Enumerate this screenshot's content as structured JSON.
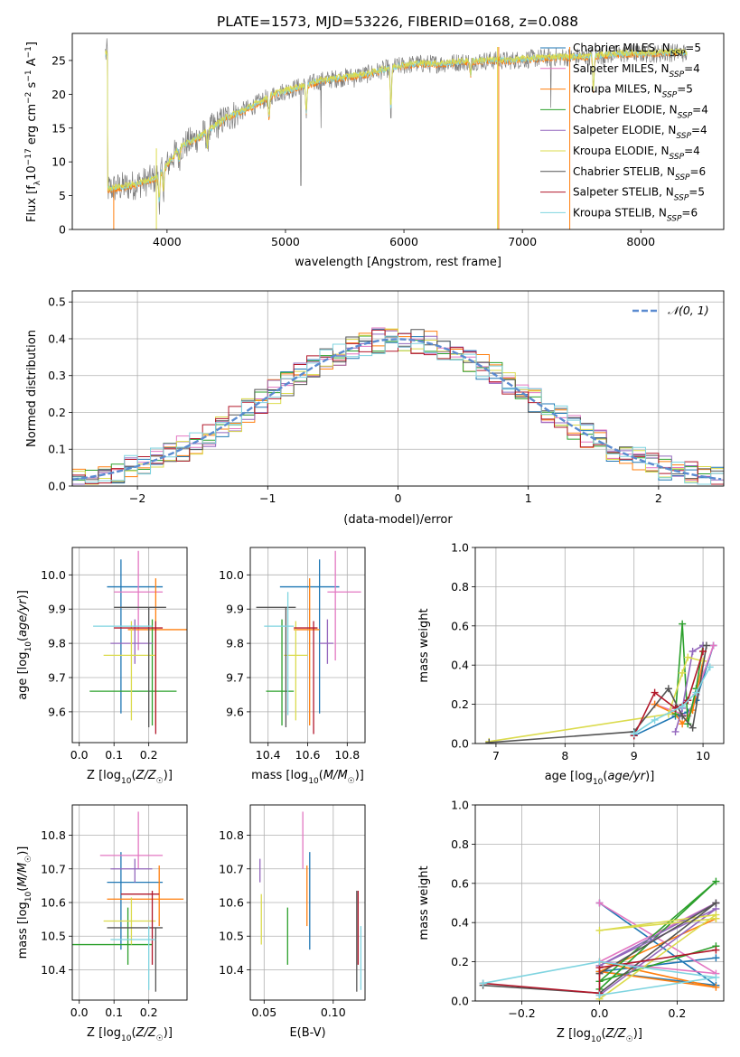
{
  "figure_title": "PLATE=1573, MJD=53226, FIBERID=0168, z=0.088",
  "legend_colors": {
    "Chabrier MILES": "#1f77b4",
    "Salpeter MILES": "#e377c2",
    "Kroupa MILES": "#ff7f0e",
    "Chabrier ELODIE": "#2ca02c",
    "Salpeter ELODIE": "#9467bd",
    "Kroupa ELODIE": "#dbdb4d",
    "Chabrier STELIB": "#555555",
    "Salpeter STELIB": "#b2182b",
    "Kroupa STELIB": "#7fd4e0"
  },
  "chart_data": [
    {
      "type": "line",
      "xlabel": "wavelength [Angstrom, rest frame]",
      "ylabel": "Flux [f_λ10^-17 erg cm^-2 s^-1 A^-1]",
      "xlim": [
        3200,
        8700
      ],
      "ylim": [
        0,
        29
      ],
      "xticks": [
        4000,
        5000,
        6000,
        7000,
        8000
      ],
      "yticks": [
        0,
        5,
        10,
        15,
        20,
        25
      ],
      "legend_position": "top-right",
      "legend_entries": [
        {
          "label": "Chabrier MILES, N",
          "sub": "SSP",
          "tail": "=5"
        },
        {
          "label": "Salpeter MILES, N",
          "sub": "SSP",
          "tail": "=4"
        },
        {
          "label": "Kroupa MILES, N",
          "sub": "SSP",
          "tail": "=5"
        },
        {
          "label": "Chabrier ELODIE, N",
          "sub": "SSP",
          "tail": "=4"
        },
        {
          "label": "Salpeter ELODIE, N",
          "sub": "SSP",
          "tail": "=4"
        },
        {
          "label": "Kroupa ELODIE, N",
          "sub": "SSP",
          "tail": "=4"
        },
        {
          "label": "Chabrier STELIB, N",
          "sub": "SSP",
          "tail": "=6"
        },
        {
          "label": "Salpeter STELIB, N",
          "sub": "SSP",
          "tail": "=5"
        },
        {
          "label": "Kroupa STELIB, N",
          "sub": "SSP",
          "tail": "=6"
        }
      ],
      "spectrum_envelope": [
        [
          3500,
          6
        ],
        [
          3700,
          6.5
        ],
        [
          3900,
          7.5
        ],
        [
          4000,
          9.5
        ],
        [
          4100,
          12
        ],
        [
          4300,
          14
        ],
        [
          4500,
          16.5
        ],
        [
          4700,
          18
        ],
        [
          4900,
          20
        ],
        [
          5100,
          21
        ],
        [
          5300,
          22
        ],
        [
          5500,
          22.5
        ],
        [
          5700,
          23
        ],
        [
          5900,
          24
        ],
        [
          6100,
          24.5
        ],
        [
          6300,
          24.5
        ],
        [
          6500,
          24.8
        ],
        [
          6700,
          25
        ],
        [
          6900,
          25
        ],
        [
          7100,
          25.3
        ],
        [
          7300,
          25.5
        ],
        [
          7500,
          25.5
        ],
        [
          7700,
          25.8
        ],
        [
          7900,
          26
        ],
        [
          8100,
          26
        ],
        [
          8300,
          26.2
        ],
        [
          8400,
          26
        ]
      ]
    },
    {
      "type": "histogram",
      "xlabel": "(data-model)/error",
      "ylabel": "Normed distribution",
      "xlim": [
        -2.5,
        2.5
      ],
      "ylim": [
        0,
        0.53
      ],
      "xticks": [
        -2,
        -1,
        0,
        1,
        2
      ],
      "yticks": [
        0.0,
        0.1,
        0.2,
        0.3,
        0.4,
        0.5
      ],
      "legend_position": "top-right",
      "legend_label": "𝒩(0, 1)",
      "gaussian": {
        "mu": 0,
        "sigma": 1,
        "color": "#5b8bd0"
      }
    },
    {
      "type": "errorbar",
      "xlabel": "Z [log10(Z/Z☉)]",
      "ylabel": "age [log10(age/yr)]",
      "xlim": [
        -0.02,
        0.31
      ],
      "ylim": [
        9.51,
        10.08
      ],
      "xticks": [
        0.0,
        0.1,
        0.2
      ],
      "yticks": [
        9.6,
        9.7,
        9.8,
        9.9,
        10.0
      ],
      "points": [
        {
          "x": 0.12,
          "xerr": [
            0.04,
            0.12
          ],
          "y": 9.965,
          "yerr": [
            0.37,
            0.08
          ],
          "color": "#1f77b4"
        },
        {
          "x": 0.17,
          "xerr": [
            0.07,
            0.07
          ],
          "y": 9.95,
          "yerr": [
            0.17,
            0.12
          ],
          "color": "#e377c2"
        },
        {
          "x": 0.22,
          "xerr": [
            0.08,
            0.09
          ],
          "y": 9.84,
          "yerr": [
            0.28,
            0.15
          ],
          "color": "#ff7f0e"
        },
        {
          "x": 0.21,
          "xerr": [
            0.18,
            0.07
          ],
          "y": 9.66,
          "yerr": [
            0.1,
            0.21
          ],
          "color": "#2ca02c"
        },
        {
          "x": 0.16,
          "xerr": [
            0.07,
            0.05
          ],
          "y": 9.8,
          "yerr": [
            0.06,
            0.07
          ],
          "color": "#9467bd"
        },
        {
          "x": 0.15,
          "xerr": [
            0.08,
            0.07
          ],
          "y": 9.765,
          "yerr": [
            0.19,
            0.1
          ],
          "color": "#dbdb4d"
        },
        {
          "x": 0.2,
          "xerr": [
            0.1,
            0.05
          ],
          "y": 9.905,
          "yerr": [
            0.35,
            0.0
          ],
          "color": "#555555"
        },
        {
          "x": 0.22,
          "xerr": [
            0.12,
            0.02
          ],
          "y": 9.845,
          "yerr": [
            0.31,
            0.02
          ],
          "color": "#b2182b"
        },
        {
          "x": 0.09,
          "xerr": [
            0.05,
            0.12
          ],
          "y": 9.85,
          "yerr": [
            0.0,
            0.0
          ],
          "color": "#7fd4e0"
        }
      ]
    },
    {
      "type": "errorbar",
      "xlabel": "mass [log10(M/M☉)]",
      "ylabel": "",
      "xlim": [
        10.31,
        10.89
      ],
      "ylim": [
        9.51,
        10.08
      ],
      "xticks": [
        10.4,
        10.6,
        10.8
      ],
      "yticks": [
        9.6,
        9.7,
        9.8,
        9.9,
        10.0
      ],
      "points": [
        {
          "x": 10.66,
          "xerr": [
            0.2,
            0.1
          ],
          "y": 9.965,
          "yerr": [
            0.37,
            0.08
          ],
          "color": "#1f77b4"
        },
        {
          "x": 10.74,
          "xerr": [
            0.04,
            0.13
          ],
          "y": 9.95,
          "yerr": [
            0.2,
            0.12
          ],
          "color": "#e377c2"
        },
        {
          "x": 10.61,
          "xerr": [
            0.08,
            0.05
          ],
          "y": 9.84,
          "yerr": [
            0.28,
            0.15
          ],
          "color": "#ff7f0e"
        },
        {
          "x": 10.47,
          "xerr": [
            0.08,
            0.06
          ],
          "y": 9.66,
          "yerr": [
            0.1,
            0.21
          ],
          "color": "#2ca02c"
        },
        {
          "x": 10.7,
          "xerr": [
            0.04,
            0.03
          ],
          "y": 9.8,
          "yerr": [
            0.06,
            0.07
          ],
          "color": "#9467bd"
        },
        {
          "x": 10.54,
          "xerr": [
            0.06,
            0.06
          ],
          "y": 9.765,
          "yerr": [
            0.19,
            0.1
          ],
          "color": "#dbdb4d"
        },
        {
          "x": 10.49,
          "xerr": [
            0.15,
            0.05
          ],
          "y": 9.905,
          "yerr": [
            0.35,
            0.0
          ],
          "color": "#555555"
        },
        {
          "x": 10.63,
          "xerr": [
            0.1,
            0.02
          ],
          "y": 9.845,
          "yerr": [
            0.31,
            0.02
          ],
          "color": "#b2182b"
        },
        {
          "x": 10.5,
          "xerr": [
            0.12,
            0.03
          ],
          "y": 9.85,
          "yerr": [
            0.26,
            0.1
          ],
          "color": "#7fd4e0"
        }
      ]
    },
    {
      "type": "line",
      "xlabel": "age [log10(age/yr)]",
      "ylabel": "mass weight",
      "xlim": [
        6.7,
        10.3
      ],
      "ylim": [
        0,
        1.0
      ],
      "xticks": [
        7,
        8,
        9,
        10
      ],
      "yticks": [
        0.0,
        0.2,
        0.4,
        0.6,
        0.8,
        1.0
      ],
      "series": [
        {
          "color": "#1f77b4",
          "x": [
            9.0,
            9.6,
            9.78,
            9.9,
            10.15
          ],
          "y": [
            0.04,
            0.14,
            0.16,
            0.22,
            0.5
          ]
        },
        {
          "color": "#e377c2",
          "x": [
            9.3,
            9.78,
            9.9,
            10.15
          ],
          "y": [
            0.2,
            0.14,
            0.25,
            0.5
          ]
        },
        {
          "color": "#ff7f0e",
          "x": [
            9.3,
            9.6,
            9.7,
            9.85,
            10.0
          ],
          "y": [
            0.2,
            0.15,
            0.1,
            0.17,
            0.42
          ]
        },
        {
          "color": "#2ca02c",
          "x": [
            9.6,
            9.7,
            9.78,
            9.9,
            10.0
          ],
          "y": [
            0.15,
            0.61,
            0.1,
            0.28,
            0.5
          ]
        },
        {
          "color": "#9467bd",
          "x": [
            9.6,
            9.7,
            9.85,
            10.0
          ],
          "y": [
            0.06,
            0.18,
            0.47,
            0.5
          ]
        },
        {
          "color": "#dbdb4d",
          "x": [
            6.9,
            9.5,
            9.7,
            9.78,
            10.0
          ],
          "y": [
            0.01,
            0.15,
            0.36,
            0.44,
            0.42
          ]
        },
        {
          "color": "#555555",
          "x": [
            6.9,
            9.0,
            9.5,
            9.7,
            9.85,
            10.05
          ],
          "y": [
            0.005,
            0.06,
            0.28,
            0.14,
            0.08,
            0.5
          ]
        },
        {
          "color": "#b2182b",
          "x": [
            9.0,
            9.3,
            9.6,
            9.78,
            10.0
          ],
          "y": [
            0.04,
            0.26,
            0.18,
            0.22,
            0.47
          ]
        },
        {
          "color": "#7fd4e0",
          "x": [
            9.0,
            9.3,
            9.7,
            9.9,
            10.1
          ],
          "y": [
            0.05,
            0.12,
            0.19,
            0.26,
            0.39
          ]
        }
      ]
    },
    {
      "type": "errorbar",
      "xlabel": "Z [log10(Z/Z☉)]",
      "ylabel": "mass [log10(M/M☉)]",
      "xlim": [
        -0.02,
        0.31
      ],
      "ylim": [
        10.31,
        10.89
      ],
      "xticks": [
        0.0,
        0.1,
        0.2
      ],
      "yticks": [
        10.4,
        10.5,
        10.6,
        10.7,
        10.8
      ],
      "points": [
        {
          "x": 0.12,
          "xerr": [
            0.04,
            0.12
          ],
          "y": 10.66,
          "yerr": [
            0.2,
            0.09
          ],
          "color": "#1f77b4"
        },
        {
          "x": 0.17,
          "xerr": [
            0.11,
            0.07
          ],
          "y": 10.74,
          "yerr": [
            0.04,
            0.13
          ],
          "color": "#e377c2"
        },
        {
          "x": 0.23,
          "xerr": [
            0.15,
            0.07
          ],
          "y": 10.61,
          "yerr": [
            0.08,
            0.1
          ],
          "color": "#ff7f0e"
        },
        {
          "x": 0.14,
          "xerr": [
            0.16,
            0.07
          ],
          "y": 10.475,
          "yerr": [
            0.06,
            0.11
          ],
          "color": "#2ca02c"
        },
        {
          "x": 0.16,
          "xerr": [
            0.07,
            0.05
          ],
          "y": 10.7,
          "yerr": [
            0.04,
            0.03
          ],
          "color": "#9467bd"
        },
        {
          "x": 0.15,
          "xerr": [
            0.08,
            0.07
          ],
          "y": 10.545,
          "yerr": [
            0.07,
            0.07
          ],
          "color": "#dbdb4d"
        },
        {
          "x": 0.22,
          "xerr": [
            0.14,
            0.02
          ],
          "y": 10.525,
          "yerr": [
            0.19,
            0.0
          ],
          "color": "#555555"
        },
        {
          "x": 0.21,
          "xerr": [
            0.09,
            0.02
          ],
          "y": 10.625,
          "yerr": [
            0.21,
            0.01
          ],
          "color": "#b2182b"
        },
        {
          "x": 0.2,
          "xerr": [
            0.11,
            0.02
          ],
          "y": 10.49,
          "yerr": [
            0.15,
            0.04
          ],
          "color": "#7fd4e0"
        }
      ]
    },
    {
      "type": "errorbar",
      "xlabel": "E(B-V)",
      "ylabel": "",
      "xlim": [
        0.04,
        0.123
      ],
      "ylim": [
        10.31,
        10.89
      ],
      "xticks": [
        0.05,
        0.1
      ],
      "yticks": [
        10.4,
        10.5,
        10.6,
        10.7,
        10.8
      ],
      "points": [
        {
          "x": 0.083,
          "xerr": [
            0,
            0
          ],
          "y": 10.66,
          "yerr": [
            0.2,
            0.09
          ],
          "color": "#1f77b4"
        },
        {
          "x": 0.078,
          "xerr": [
            0,
            0
          ],
          "y": 10.74,
          "yerr": [
            0.04,
            0.13
          ],
          "color": "#e377c2"
        },
        {
          "x": 0.081,
          "xerr": [
            0,
            0
          ],
          "y": 10.61,
          "yerr": [
            0.08,
            0.1
          ],
          "color": "#ff7f0e"
        },
        {
          "x": 0.067,
          "xerr": [
            0,
            0
          ],
          "y": 10.475,
          "yerr": [
            0.06,
            0.11
          ],
          "color": "#2ca02c"
        },
        {
          "x": 0.047,
          "xerr": [
            0,
            0
          ],
          "y": 10.7,
          "yerr": [
            0.04,
            0.03
          ],
          "color": "#9467bd"
        },
        {
          "x": 0.048,
          "xerr": [
            0,
            0
          ],
          "y": 10.545,
          "yerr": [
            0.07,
            0.08
          ],
          "color": "#dbdb4d"
        },
        {
          "x": 0.117,
          "xerr": [
            0,
            0
          ],
          "y": 10.525,
          "yerr": [
            0.19,
            0.11
          ],
          "color": "#555555"
        },
        {
          "x": 0.118,
          "xerr": [
            0,
            0
          ],
          "y": 10.625,
          "yerr": [
            0.21,
            0.01
          ],
          "color": "#b2182b"
        },
        {
          "x": 0.12,
          "xerr": [
            0,
            0
          ],
          "y": 10.49,
          "yerr": [
            0.15,
            0.04
          ],
          "color": "#7fd4e0"
        }
      ]
    },
    {
      "type": "line",
      "xlabel": "Z [log10(Z/Z☉)]",
      "ylabel": "mass weight",
      "xlim": [
        -0.32,
        0.32
      ],
      "ylim": [
        0,
        1.0
      ],
      "xticks": [
        -0.2,
        0.0,
        0.2
      ],
      "yticks": [
        0.0,
        0.2,
        0.4,
        0.6,
        0.8,
        1.0
      ],
      "series": [
        {
          "color": "#1f77b4",
          "x": [
            0.0,
            0.3,
            0.0,
            0.3
          ],
          "y": [
            0.5,
            0.08,
            0.15,
            0.22
          ]
        },
        {
          "color": "#e377c2",
          "x": [
            0.0,
            0.3,
            0.0,
            0.3
          ],
          "y": [
            0.5,
            0.14,
            0.2,
            0.5
          ]
        },
        {
          "color": "#ff7f0e",
          "x": [
            0.0,
            0.3,
            0.0,
            0.3
          ],
          "y": [
            0.2,
            0.07,
            0.15,
            0.42
          ]
        },
        {
          "color": "#2ca02c",
          "x": [
            0.0,
            0.3,
            0.0,
            0.3
          ],
          "y": [
            0.06,
            0.61,
            0.1,
            0.28
          ]
        },
        {
          "color": "#9467bd",
          "x": [
            0.0,
            0.3,
            0.0,
            0.3
          ],
          "y": [
            0.03,
            0.47,
            0.18,
            0.5
          ]
        },
        {
          "color": "#dbdb4d",
          "x": [
            0.0,
            0.3,
            0.0,
            0.3
          ],
          "y": [
            0.01,
            0.44,
            0.36,
            0.42
          ]
        },
        {
          "color": "#555555",
          "x": [
            -0.3,
            0.0,
            0.3,
            0.0
          ],
          "y": [
            0.08,
            0.04,
            0.5,
            0.14
          ]
        },
        {
          "color": "#b2182b",
          "x": [
            -0.3,
            0.0,
            0.0,
            0.3
          ],
          "y": [
            0.09,
            0.04,
            0.17,
            0.26
          ]
        },
        {
          "color": "#7fd4e0",
          "x": [
            -0.3,
            0.0,
            0.3,
            0.0
          ],
          "y": [
            0.09,
            0.2,
            0.12,
            0.03
          ]
        }
      ]
    }
  ]
}
